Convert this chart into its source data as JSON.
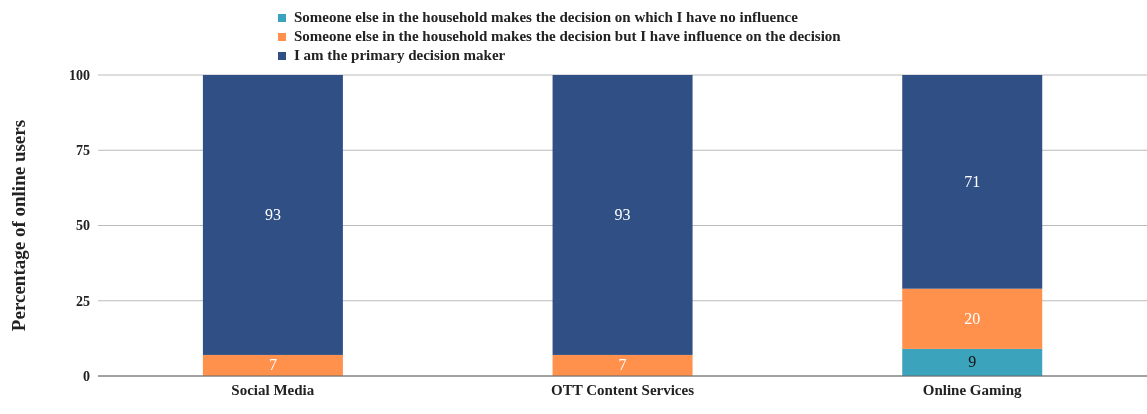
{
  "chart_data": {
    "type": "bar",
    "stacked": true,
    "ylabel": "Percentage of online users",
    "categories": [
      "Social Media",
      "OTT Content Services",
      "Online Gaming"
    ],
    "series": [
      {
        "name": "Someone else in the household makes the decision on which I have no influence",
        "color": "#3ba3bb",
        "values": [
          0,
          0,
          9
        ],
        "value_labels": [
          null,
          null,
          "9"
        ]
      },
      {
        "name": "Someone else in the household makes the decision but I have influence on the decision",
        "color": "#ff914d",
        "values": [
          7,
          7,
          20
        ],
        "value_labels": [
          "7",
          "7",
          "20"
        ]
      },
      {
        "name": "I am the primary decision maker",
        "color": "#304f84",
        "values": [
          93,
          93,
          71
        ],
        "value_labels": [
          "93",
          "93",
          "71"
        ]
      }
    ],
    "ylim": [
      0,
      100
    ],
    "yticks": [
      0,
      25,
      50,
      75,
      100
    ],
    "grid": "y",
    "legend": "top"
  }
}
